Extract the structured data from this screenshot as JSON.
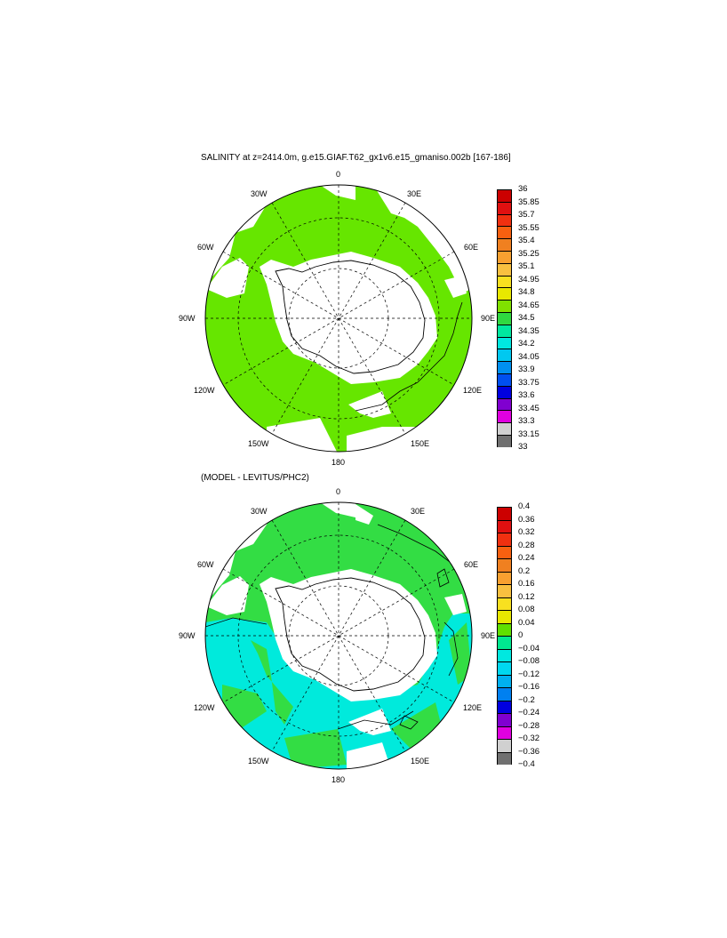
{
  "figure": {
    "title_top": "SALINITY at z=2414.0m, g.e15.GIAF.T62_gx1v6.e15_gmaniso.002b [167-186]",
    "title_bottom": "(MODEL - LEVITUS/PHC2)",
    "longitude_labels": [
      "0",
      "30E",
      "60E",
      "90E",
      "120E",
      "150E",
      "180",
      "150W",
      "120W",
      "90W",
      "60W",
      "30W"
    ]
  },
  "colorbar_top": {
    "labels": [
      "36",
      "35.85",
      "35.7",
      "35.55",
      "35.4",
      "35.25",
      "35.1",
      "34.95",
      "34.8",
      "34.65",
      "34.5",
      "34.35",
      "34.2",
      "34.05",
      "33.9",
      "33.75",
      "33.6",
      "33.45",
      "33.3",
      "33.15",
      "33"
    ],
    "colors": [
      "#cc0000",
      "#e01010",
      "#f03010",
      "#f86010",
      "#f08020",
      "#f8a030",
      "#f8c040",
      "#f8e020",
      "#e8e800",
      "#80e000",
      "#30d840",
      "#00e8a0",
      "#00e8e0",
      "#00c8f0",
      "#0090f0",
      "#0050f0",
      "#0000e0",
      "#8000d0",
      "#e000e0",
      "#d0d0d0",
      "#707070"
    ]
  },
  "colorbar_bottom": {
    "labels": [
      "0.4",
      "0.36",
      "0.32",
      "0.28",
      "0.24",
      "0.2",
      "0.16",
      "0.12",
      "0.08",
      "0.04",
      "0",
      "−0.04",
      "−0.08",
      "−0.12",
      "−0.16",
      "−0.2",
      "−0.24",
      "−0.28",
      "−0.32",
      "−0.36",
      "−0.4"
    ],
    "colors": [
      "#cc0000",
      "#e01010",
      "#f03010",
      "#f86010",
      "#f08020",
      "#f8a030",
      "#f8c040",
      "#f8e020",
      "#e8e800",
      "#60e000",
      "#00e890",
      "#00e8e0",
      "#00d8f0",
      "#00b0f0",
      "#0080f0",
      "#0000e0",
      "#8000d0",
      "#e000e0",
      "#d0d0d0",
      "#707070"
    ]
  },
  "colors": {
    "ocean_top": "#66e600",
    "ocean_bottom_pos": "#33dd44",
    "ocean_bottom_neg": "#00eadc",
    "land": "#ffffff"
  }
}
